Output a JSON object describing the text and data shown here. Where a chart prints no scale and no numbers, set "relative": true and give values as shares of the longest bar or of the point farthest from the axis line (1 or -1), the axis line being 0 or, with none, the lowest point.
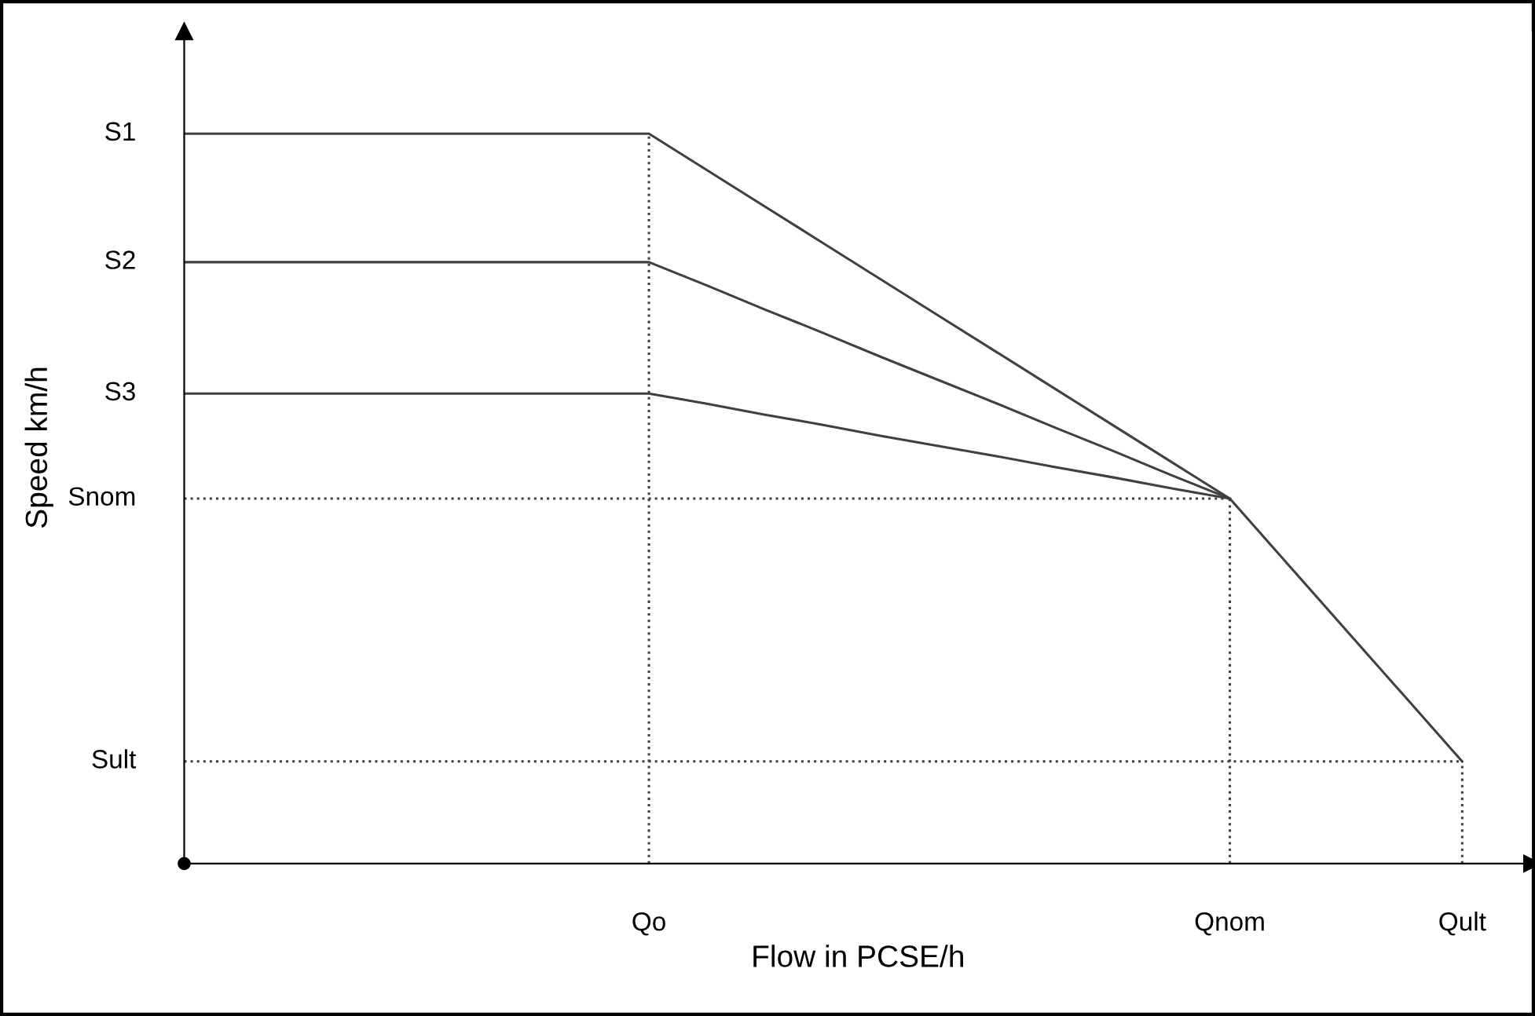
{
  "chart_data": {
    "type": "line",
    "xlabel": "Flow in PCSE/h",
    "ylabel": "Speed km/h",
    "relative": true,
    "marker": "none",
    "categories": [
      null,
      null,
      null,
      null,
      null,
      null,
      null,
      null,
      "Qo",
      null,
      null,
      null,
      null,
      null,
      null,
      null,
      null,
      null,
      "Qnom",
      null,
      null,
      null,
      "Qult"
    ],
    "ref_lines": [
      {
        "axis": "x",
        "value": "Qo",
        "line_style": "dotted",
        "color": "#404040"
      },
      {
        "axis": "x",
        "value": "Qnom",
        "line_style": "dotted",
        "color": "#404040"
      },
      {
        "axis": "x",
        "value": "Qult",
        "line_style": "dotted",
        "color": "#404040"
      }
    ],
    "series": [
      {
        "name": "S1",
        "color": "#404040",
        "line_style": "solid",
        "values": [
          1,
          1,
          1,
          1,
          1,
          1,
          1,
          1,
          1,
          0.95,
          0.9,
          0.85,
          0.8,
          0.75,
          0.7,
          0.65,
          0.6,
          0.55,
          0.5,
          0.41,
          0.32,
          0.23,
          0.14
        ]
      },
      {
        "name": "S2",
        "color": "#404040",
        "line_style": "solid",
        "values": [
          0.824,
          0.824,
          0.824,
          0.824,
          0.824,
          0.824,
          0.824,
          0.824,
          0.824,
          0.792,
          0.759,
          0.727,
          0.694,
          0.662,
          0.63,
          0.597,
          0.565,
          0.532,
          0.5,
          null,
          null,
          null,
          null
        ]
      },
      {
        "name": "S3",
        "color": "#404040",
        "line_style": "solid",
        "values": [
          0.644,
          0.644,
          0.644,
          0.644,
          0.644,
          0.644,
          0.644,
          0.644,
          0.644,
          0.63,
          0.615,
          0.601,
          0.586,
          0.572,
          0.558,
          0.543,
          0.529,
          0.514,
          0.5,
          null,
          null,
          null,
          null
        ]
      },
      {
        "name": "Snom",
        "color": "#404040",
        "line_style": "dotted",
        "values": [
          0.5,
          0.5,
          0.5,
          0.5,
          0.5,
          0.5,
          0.5,
          0.5,
          0.5,
          0.5,
          0.5,
          0.5,
          0.5,
          0.5,
          0.5,
          0.5,
          0.5,
          0.5,
          0.5,
          null,
          null,
          null,
          null
        ]
      },
      {
        "name": "Sult",
        "color": "#404040",
        "line_style": "dotted",
        "values": [
          0.14,
          0.14,
          0.14,
          0.14,
          0.14,
          0.14,
          0.14,
          0.14,
          0.14,
          0.14,
          0.14,
          0.14,
          0.14,
          0.14,
          0.14,
          0.14,
          0.14,
          0.14,
          0.14,
          0.14,
          0.14,
          0.14,
          0.14
        ]
      }
    ]
  }
}
